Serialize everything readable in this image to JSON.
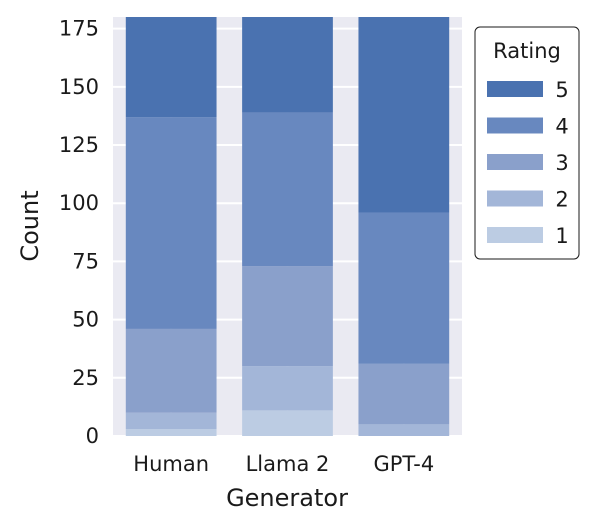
{
  "chart_data": {
    "type": "bar",
    "stacked": true,
    "title": "",
    "xlabel": "Generator",
    "ylabel": "Count",
    "categories": [
      "Human",
      "Llama 2",
      "GPT-4"
    ],
    "ylim": [
      0,
      180
    ],
    "yticks": [
      "0",
      "25",
      "50",
      "75",
      "100",
      "125",
      "150",
      "175"
    ],
    "grid": true,
    "legend": {
      "title": "Rating",
      "placement": "right"
    },
    "series": [
      {
        "name": "1",
        "values": [
          3,
          11,
          0
        ],
        "color": "#bccce3"
      },
      {
        "name": "2",
        "values": [
          7,
          19,
          5
        ],
        "color": "#a3b6d8"
      },
      {
        "name": "3",
        "values": [
          36,
          43,
          26
        ],
        "color": "#8aa0cb"
      },
      {
        "name": "4",
        "values": [
          91,
          66,
          65
        ],
        "color": "#6888bf"
      },
      {
        "name": "5",
        "values": [
          43,
          41,
          84
        ],
        "color": "#4a72b0"
      }
    ]
  }
}
